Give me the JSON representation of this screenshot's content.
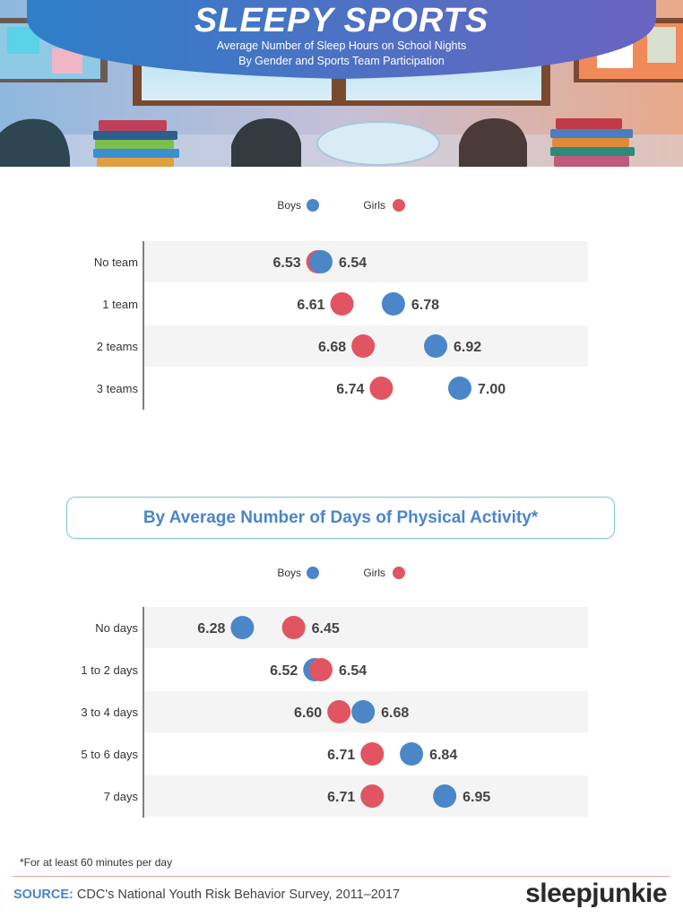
{
  "header": {
    "title": "SLEEPY SPORTS",
    "subtitle_line1": "Average Number of Sleep Hours on School Nights",
    "subtitle_line2": "By Gender and Sports Team Participation"
  },
  "section_heading": "By Average Number of Days of Physical Activity*",
  "footnote": "*For at least 60 minutes per day",
  "source": {
    "label": "SOURCE:",
    "text": "CDC's National Youth Risk Behavior Survey, 2011–2017"
  },
  "brand": "sleepjunkie",
  "colors": {
    "boys": "#4a86c8",
    "girls": "#e05561",
    "row_band": "#f4f4f4",
    "header_blue": "#4a86c8"
  },
  "chart_data": [
    {
      "type": "scatter",
      "categories": [
        "No team",
        "1 team",
        "2 teams",
        "3 teams"
      ],
      "series": [
        {
          "name": "Boys",
          "values": [
            6.54,
            6.78,
            6.92,
            7.0
          ]
        },
        {
          "name": "Girls",
          "values": [
            6.53,
            6.61,
            6.68,
            6.74
          ]
        }
      ],
      "value_labels": {
        "boys": [
          "6.54",
          "6.78",
          "6.92",
          "7.00"
        ],
        "girls": [
          "6.53",
          "6.61",
          "6.68",
          "6.74"
        ]
      },
      "legend": "top-center",
      "grid": false
    },
    {
      "type": "scatter",
      "categories": [
        "No days",
        "1 to 2 days",
        "3 to 4 days",
        "5 to 6 days",
        "7 days"
      ],
      "series": [
        {
          "name": "Boys",
          "values": [
            6.28,
            6.52,
            6.68,
            6.84,
            6.95
          ]
        },
        {
          "name": "Girls",
          "values": [
            6.45,
            6.54,
            6.6,
            6.71,
            6.71
          ]
        }
      ],
      "value_labels": {
        "boys": [
          "6.28",
          "6.52",
          "6.68",
          "6.84",
          "6.95"
        ],
        "girls": [
          "6.45",
          "6.54",
          "6.60",
          "6.71",
          "6.71"
        ]
      },
      "legend": "top-center",
      "grid": false
    }
  ]
}
